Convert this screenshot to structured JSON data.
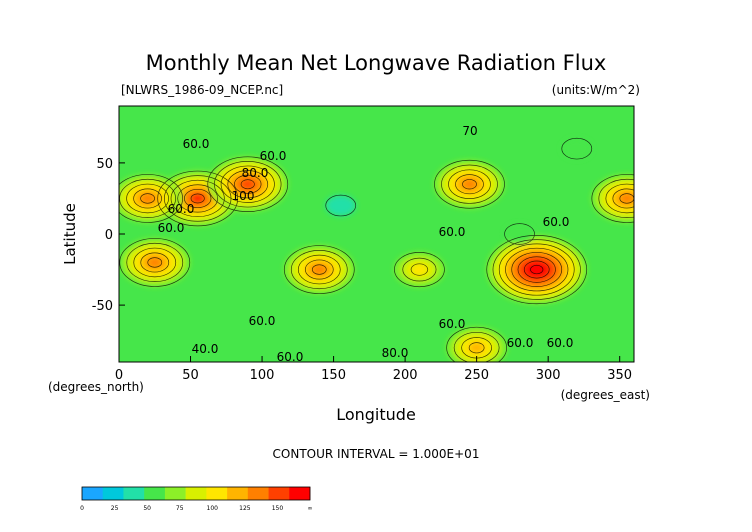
{
  "chart_data": {
    "type": "heatmap",
    "title": "Monthly Mean Net Longwave Radiation Flux",
    "source": "[NLWRS_1986-09_NCEP.nc]",
    "units": "(units:W/m^2)",
    "xlabel": "Longitude",
    "ylabel": "Latitude",
    "x_unit_label": "(degrees_east)",
    "y_unit_label": "(degrees_north)",
    "xlim": [
      0,
      360
    ],
    "ylim": [
      -90,
      90
    ],
    "x_ticks": [
      0,
      50,
      100,
      150,
      200,
      250,
      300,
      350
    ],
    "y_ticks": [
      50,
      0,
      -50
    ],
    "contour_interval_text": "CONTOUR INTERVAL = 1.000E+01",
    "contour_labels": [
      "60.0",
      "60.0",
      "80.0",
      "100",
      "60.0",
      "60.0",
      "60.0",
      "60.0",
      "60.0",
      "60.0",
      "40.0",
      "60.0",
      "80.0",
      "60.0",
      "60.0",
      "70"
    ],
    "colorbar": {
      "tick_labels": [
        "0",
        "25",
        "50",
        "75",
        "100",
        "125",
        "150",
        "∞"
      ],
      "colors": [
        "#1aa6ff",
        "#00c8dc",
        "#22e0a8",
        "#46e64a",
        "#8cf028",
        "#d8f000",
        "#ffe600",
        "#ffb400",
        "#ff8000",
        "#ff4000",
        "#ff0000"
      ]
    },
    "regions": [
      {
        "lon": 55,
        "lat": 25,
        "value": 125
      },
      {
        "lon": 20,
        "lat": 25,
        "value": 110
      },
      {
        "lon": 90,
        "lat": 35,
        "value": 120
      },
      {
        "lon": 25,
        "lat": -20,
        "value": 110
      },
      {
        "lon": 140,
        "lat": -25,
        "value": 110
      },
      {
        "lon": 245,
        "lat": 35,
        "value": 110
      },
      {
        "lon": 292,
        "lat": -25,
        "value": 150
      },
      {
        "lon": 355,
        "lat": 25,
        "value": 105
      },
      {
        "lon": 210,
        "lat": -25,
        "value": 80
      },
      {
        "lon": 155,
        "lat": 20,
        "value": 35
      },
      {
        "lon": 320,
        "lat": 60,
        "value": 40
      },
      {
        "lon": 280,
        "lat": 0,
        "value": 45
      },
      {
        "lon": 250,
        "lat": -80,
        "value": 90
      }
    ]
  }
}
